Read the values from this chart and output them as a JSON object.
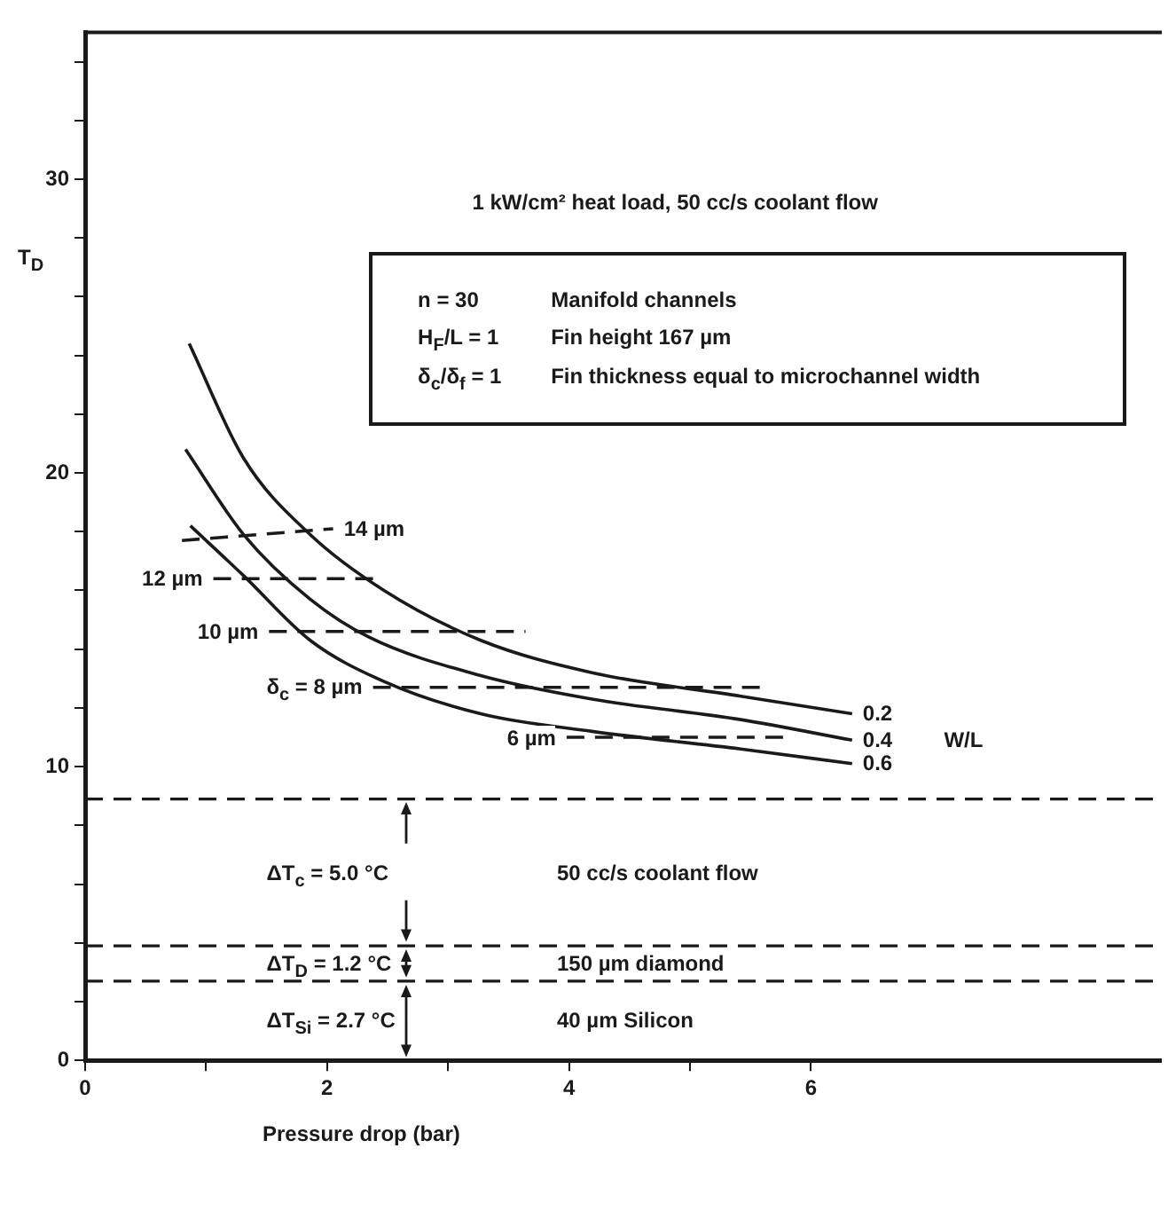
{
  "chart_data": {
    "type": "line",
    "xlabel": "Pressure drop (bar)",
    "ylabel": "T$_{D}$",
    "xlim": [
      0,
      8.9
    ],
    "ylim": [
      0,
      35
    ],
    "xticks": [
      0,
      {
        "value": 1,
        "label": null
      },
      2,
      {
        "value": 3,
        "label": null
      },
      4,
      {
        "value": 5,
        "label": null
      },
      6
    ],
    "yticks": [
      0,
      {
        "value": 2,
        "label": null
      },
      {
        "value": 4,
        "label": null
      },
      {
        "value": 6,
        "label": null
      },
      {
        "value": 8,
        "label": null
      },
      10,
      {
        "value": 12,
        "label": null
      },
      {
        "value": 14,
        "label": null
      },
      {
        "value": 16,
        "label": null
      },
      {
        "value": 18,
        "label": null
      },
      20,
      {
        "value": 22,
        "label": null
      },
      {
        "value": 24,
        "label": null
      },
      {
        "value": 26,
        "label": null
      },
      {
        "value": 28,
        "label": null
      },
      30,
      {
        "value": 32,
        "label": null
      },
      {
        "value": 34,
        "label": null
      }
    ],
    "grid": false,
    "legend": false,
    "marker": "none",
    "series": [
      {
        "name": "0.2",
        "color": "#1a1a1a",
        "line_style": "solid",
        "x": [
          0.86,
          1.31,
          1.86,
          2.47,
          3.27,
          4.19,
          5.42,
          6.34
        ],
        "values": [
          24.4,
          20.5,
          17.9,
          16.0,
          14.3,
          13.2,
          12.4,
          11.8
        ]
      },
      {
        "name": "0.4",
        "color": "#1a1a1a",
        "line_style": "solid",
        "x": [
          0.83,
          1.31,
          1.86,
          2.35,
          3.27,
          4.19,
          5.42,
          6.34
        ],
        "values": [
          20.8,
          17.9,
          15.7,
          14.4,
          13.1,
          12.3,
          11.6,
          10.9
        ]
      },
      {
        "name": "0.6",
        "color": "#1a1a1a",
        "line_style": "solid",
        "x": [
          0.87,
          1.31,
          1.86,
          2.47,
          3.27,
          4.19,
          5.42,
          6.34
        ],
        "values": [
          18.2,
          16.5,
          14.3,
          12.9,
          11.8,
          11.2,
          10.6,
          10.1
        ]
      },
      {
        "name": "14 µm",
        "color": "#1a1a1a",
        "line_style": "dashed",
        "x": [
          0.8,
          2.05
        ],
        "values": [
          17.7,
          18.1
        ]
      },
      {
        "name": "12 µm",
        "color": "#1a1a1a",
        "line_style": "dashed",
        "x": [
          1.06,
          2.38
        ],
        "values": [
          16.4,
          16.4
        ]
      },
      {
        "name": "10 µm",
        "color": "#1a1a1a",
        "line_style": "dashed",
        "x": [
          1.52,
          3.64
        ],
        "values": [
          14.6,
          14.6
        ]
      },
      {
        "name": "δ$_{c}$ = 8 µm",
        "color": "#1a1a1a",
        "line_style": "dashed",
        "x": [
          2.38,
          5.6
        ],
        "values": [
          12.7,
          12.7
        ]
      },
      {
        "name": "6 µm",
        "color": "#1a1a1a",
        "line_style": "dashed",
        "x": [
          3.98,
          5.85
        ],
        "values": [
          11.0,
          11.0
        ]
      }
    ],
    "ref_lines": [
      {
        "axis": "y",
        "value": 8.9,
        "color": "#1a1a1a",
        "line_style": "dashed"
      },
      {
        "axis": "y",
        "value": 3.9,
        "color": "#1a1a1a",
        "line_style": "dashed"
      },
      {
        "axis": "y",
        "value": 2.7,
        "color": "#1a1a1a",
        "line_style": "dashed"
      }
    ],
    "annotations": [
      "1 kW/cm² heat load, 50 cc/s coolant flow",
      "n = 30",
      "Manifold channels",
      "H$_{F}$/L = 1",
      "Fin height  167 µm",
      "δ$_{c}$/δ$_{f}$ = 1",
      "Fin thickness equal to microchannel width",
      "ΔT$_{c}$ = 5.0 °C",
      "50 cc/s coolant flow",
      "ΔT$_{D}$ = 1.2 °C",
      "150 µm diamond",
      "ΔT$_{Si}$ = 2.7 °C",
      "40 µm Silicon",
      "W/L"
    ]
  }
}
